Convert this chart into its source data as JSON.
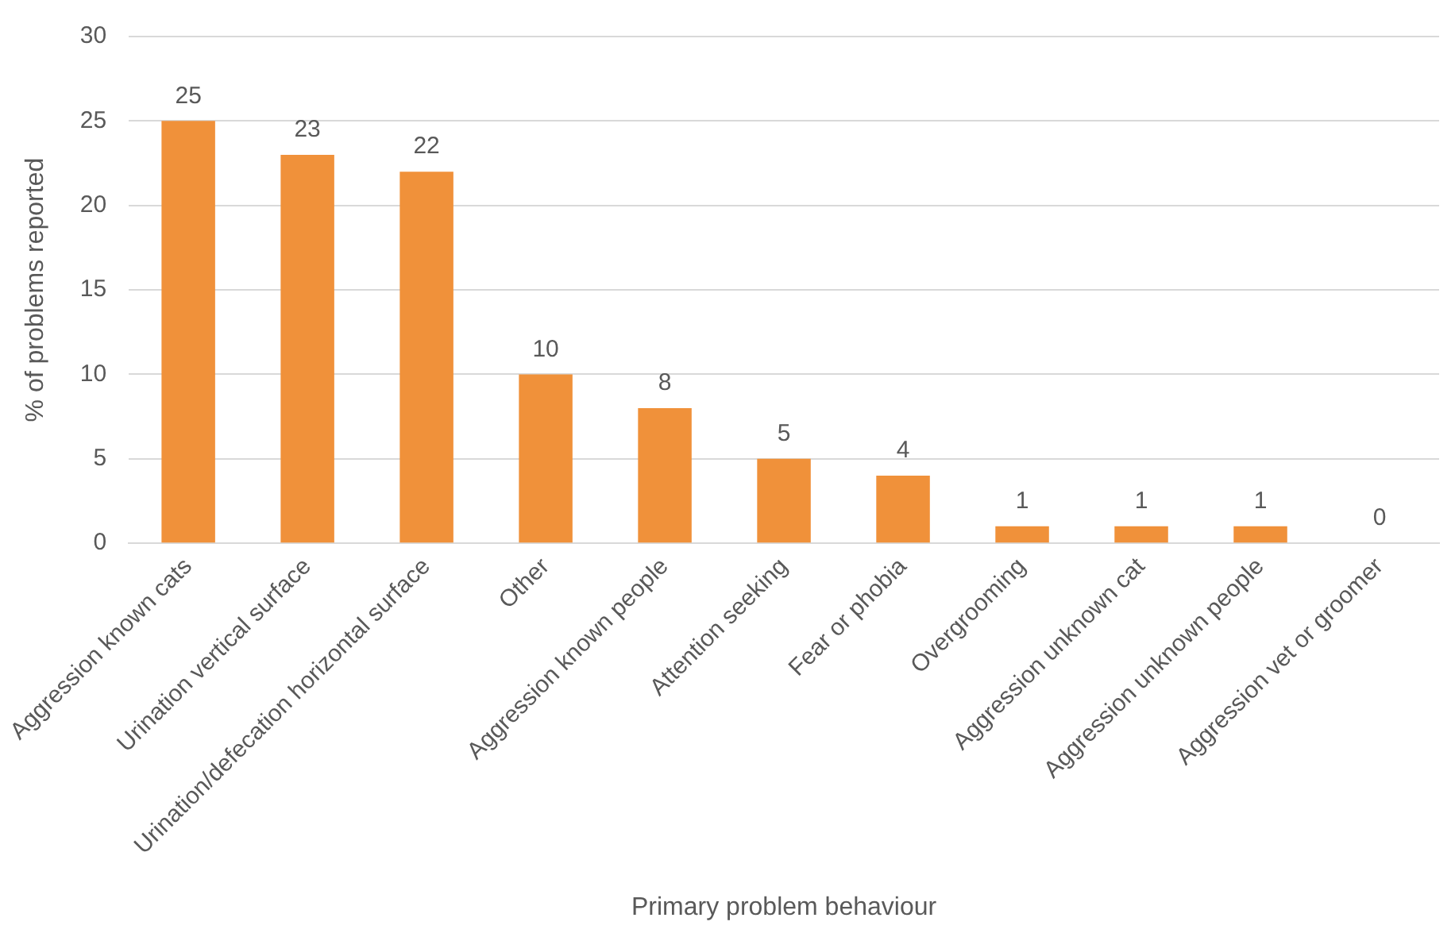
{
  "chart_data": {
    "type": "bar",
    "xlabel": "Primary problem behaviour",
    "ylabel": "% of problems reported",
    "categories": [
      "Aggression known cats",
      "Urination vertical surface",
      "Urination/defecation horizontal surface",
      "Other",
      "Aggression known people",
      "Attention seeking",
      "Fear or phobia",
      "Overgrooming",
      "Aggression unknown cat",
      "Aggression unknown people",
      "Aggression vet or groomer"
    ],
    "values": [
      25,
      23,
      22,
      10,
      8,
      5,
      4,
      1,
      1,
      1,
      0
    ],
    "color": "#f0913a",
    "ylim": [
      0,
      30
    ],
    "yticks": [
      0,
      5,
      10,
      15,
      20,
      25,
      30
    ],
    "grid": "y",
    "data_labels": true
  }
}
